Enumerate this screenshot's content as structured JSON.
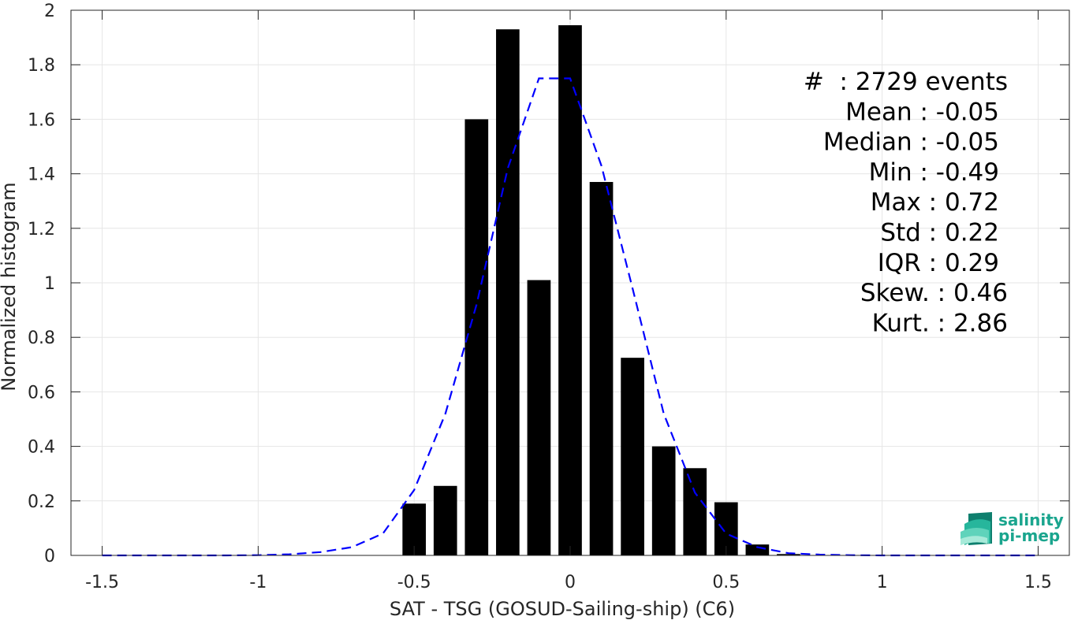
{
  "chart_data": {
    "type": "bar",
    "xlabel": "SAT - TSG (GOSUD-Sailing-ship) (C6)",
    "ylabel": "Normalized histogram",
    "xlim": [
      -1.6,
      1.6
    ],
    "ylim": [
      0,
      2
    ],
    "xticks": [
      -1.5,
      -1,
      -0.5,
      0,
      0.5,
      1,
      1.5
    ],
    "xtick_labels": [
      "-1.5",
      "-1",
      "-0.5",
      "0",
      "0.5",
      "1",
      "1.5"
    ],
    "yticks": [
      0,
      0.2,
      0.4,
      0.6,
      0.8,
      1,
      1.2,
      1.4,
      1.6,
      1.8,
      2
    ],
    "ytick_labels": [
      "0",
      "0.2",
      "0.4",
      "0.6",
      "0.8",
      "1",
      "1.2",
      "1.4",
      "1.6",
      "1.8",
      "2"
    ],
    "grid": true,
    "bar_width": 0.075,
    "bar_color": "#000000",
    "bins": [
      {
        "x": -0.5,
        "value": 0.19
      },
      {
        "x": -0.4,
        "value": 0.255
      },
      {
        "x": -0.3,
        "value": 1.6
      },
      {
        "x": -0.2,
        "value": 1.93
      },
      {
        "x": -0.1,
        "value": 1.01
      },
      {
        "x": 0.0,
        "value": 1.945
      },
      {
        "x": 0.1,
        "value": 1.37
      },
      {
        "x": 0.2,
        "value": 0.725
      },
      {
        "x": 0.3,
        "value": 0.4
      },
      {
        "x": 0.4,
        "value": 0.32
      },
      {
        "x": 0.5,
        "value": 0.195
      },
      {
        "x": 0.6,
        "value": 0.04
      },
      {
        "x": 0.7,
        "value": 0.005
      }
    ],
    "fit_curve": {
      "color": "#0000ff",
      "style": "dashed",
      "points": [
        [
          -1.5,
          0
        ],
        [
          -1.4,
          0
        ],
        [
          -1.3,
          0
        ],
        [
          -1.2,
          0
        ],
        [
          -1.1,
          0
        ],
        [
          -1.0,
          0.001
        ],
        [
          -0.9,
          0.004
        ],
        [
          -0.8,
          0.012
        ],
        [
          -0.7,
          0.03
        ],
        [
          -0.6,
          0.08
        ],
        [
          -0.5,
          0.24
        ],
        [
          -0.4,
          0.52
        ],
        [
          -0.3,
          0.92
        ],
        [
          -0.2,
          1.42
        ],
        [
          -0.1,
          1.75
        ],
        [
          0.0,
          1.75
        ],
        [
          0.1,
          1.43
        ],
        [
          0.2,
          0.98
        ],
        [
          0.3,
          0.52
        ],
        [
          0.4,
          0.23
        ],
        [
          0.5,
          0.08
        ],
        [
          0.6,
          0.03
        ],
        [
          0.7,
          0.008
        ],
        [
          0.8,
          0.003
        ],
        [
          0.9,
          0.001
        ],
        [
          1.0,
          0
        ],
        [
          1.1,
          0
        ],
        [
          1.2,
          0
        ],
        [
          1.3,
          0
        ],
        [
          1.4,
          0
        ],
        [
          1.5,
          0
        ]
      ]
    },
    "annotations": [
      "#  : 2729 events",
      "Mean : -0.05",
      "Median : -0.05",
      "Min : -0.49",
      "Max : 0.72",
      "Std : 0.22",
      "IQR : 0.29",
      "Skew. : 0.46",
      "Kurt. : 2.86"
    ]
  },
  "logo": {
    "line1": "salinity",
    "line2": "pi-mep",
    "color": "#1aa58e"
  }
}
